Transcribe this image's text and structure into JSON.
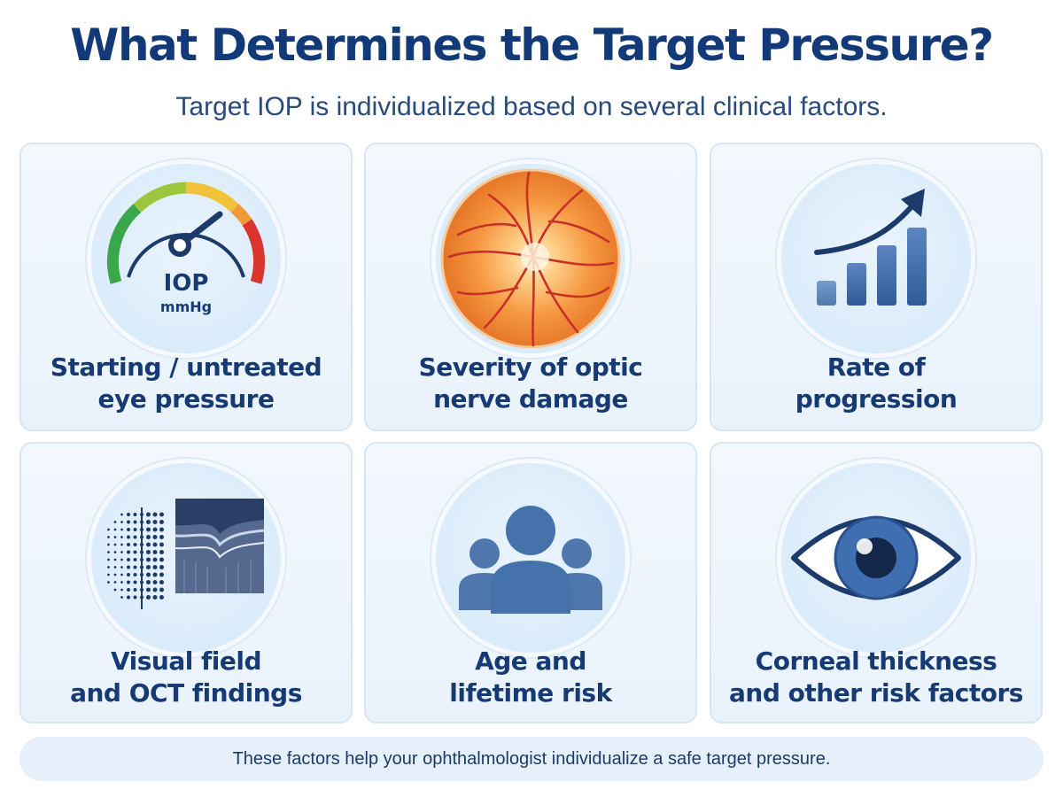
{
  "header": {
    "title": "What Determines the Target Pressure?",
    "subtitle": "Target IOP is individualized based on several clinical factors."
  },
  "cards": [
    {
      "label_line1": "Starting / untreated",
      "label_line2": "eye pressure",
      "icon": "pressure-gauge-icon",
      "gauge_text": "IOP",
      "gauge_unit": "mmHg"
    },
    {
      "label_line1": "Severity of optic",
      "label_line2": "nerve damage",
      "icon": "optic-nerve-fundus-icon"
    },
    {
      "label_line1": "Rate of",
      "label_line2": "progression",
      "icon": "rising-bar-chart-icon"
    },
    {
      "label_line1": "Visual field",
      "label_line2": "and OCT findings",
      "icon": "visual-field-oct-icon"
    },
    {
      "label_line1": "Age and",
      "label_line2": "lifetime risk",
      "icon": "people-group-icon"
    },
    {
      "label_line1": "Corneal thickness",
      "label_line2": "and other risk factors",
      "icon": "eye-icon"
    }
  ],
  "footer": {
    "text": "These factors help your ophthalmologist individualize a safe target pressure."
  },
  "colors": {
    "title": "#123a79",
    "accent": "#3e6aa6",
    "card_bg": "#eef5fc",
    "fundus": "#f08a3c"
  }
}
